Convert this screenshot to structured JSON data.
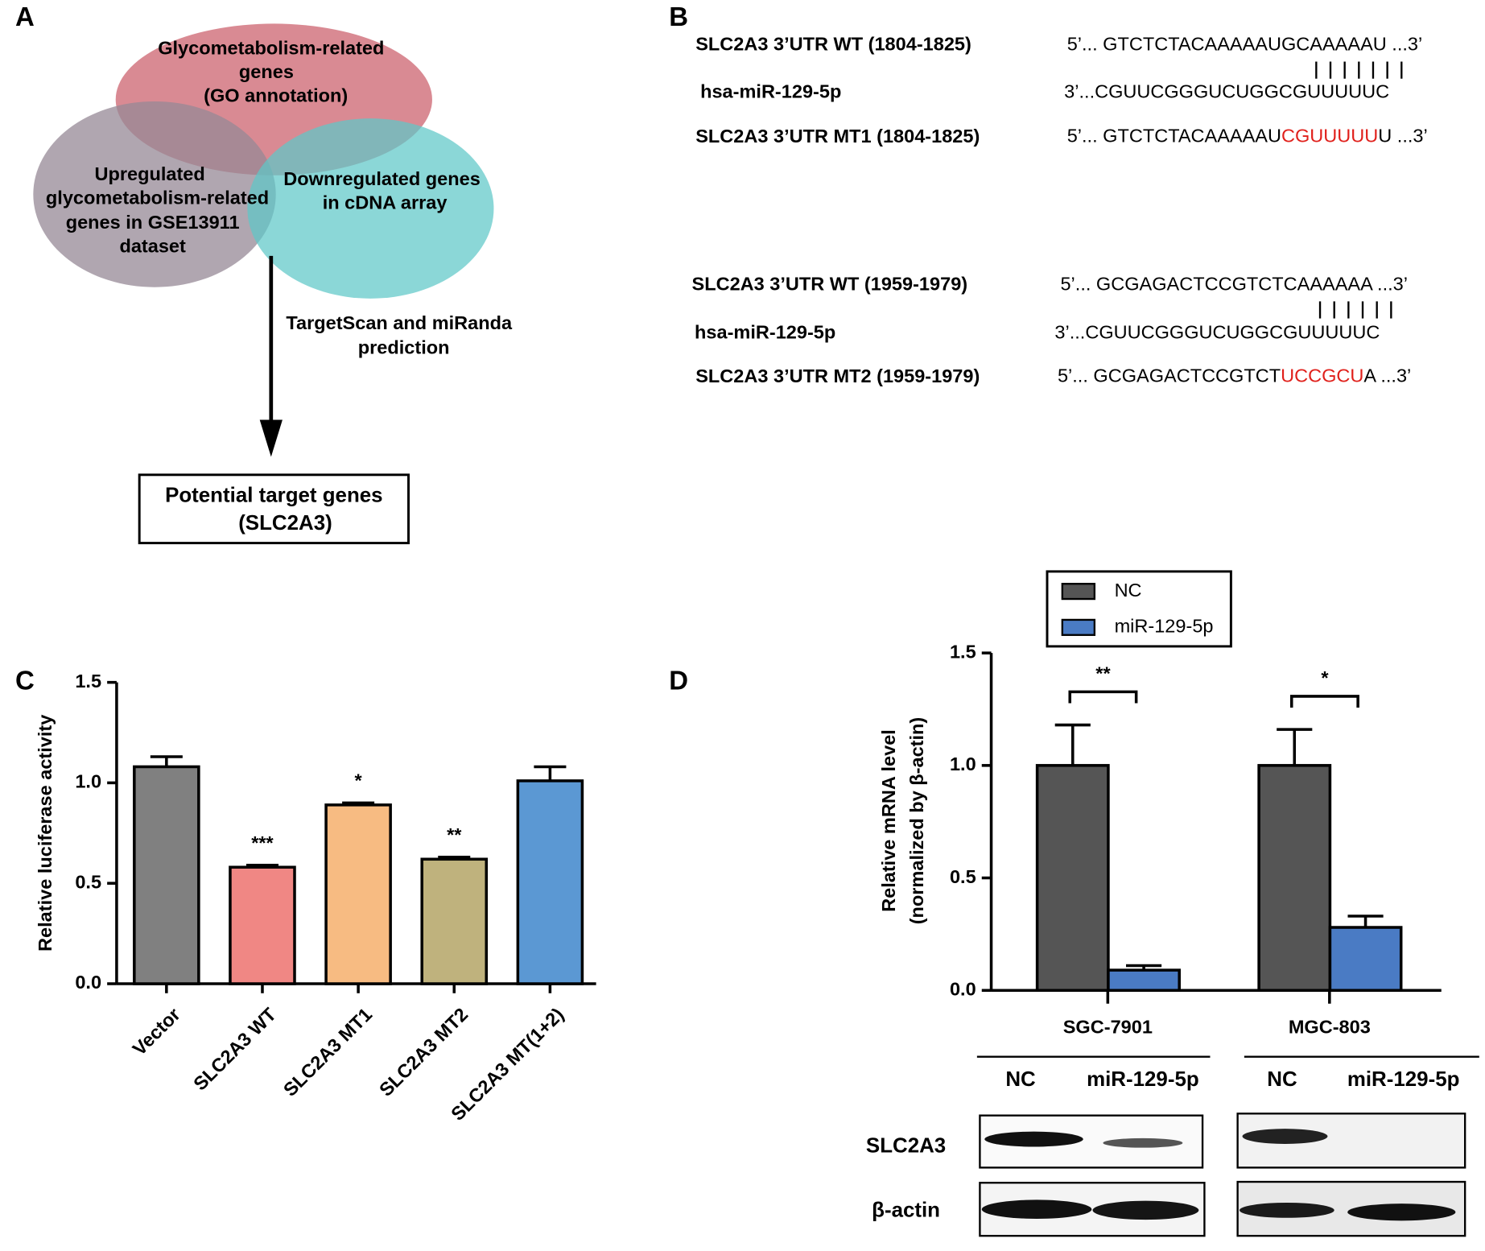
{
  "panel_labels": [
    "A",
    "B",
    "C",
    "D"
  ],
  "venn": {
    "top": [
      "Glycometabolism-related",
      "genes",
      "(GO annotation)"
    ],
    "left": [
      "Upregulated",
      "glycometabolism-related",
      "genes in GSE13911",
      "dataset"
    ],
    "right": [
      "Downregulated genes",
      "in  cDNA array"
    ],
    "arrow_label": [
      "TargetScan and miRanda",
      "prediction"
    ],
    "result": [
      "Potential target genes",
      "(SLC2A3)"
    ]
  },
  "sequences": [
    {
      "wt_label": "SLC2A3 3’UTR WT (1804-1825)",
      "wt": "5’... GTCTCTACAAAAAUGCAAAAAU ...3’",
      "mir_label": "hsa-miR-129-5p",
      "mir": "3’...CGUUCGGGUCUGGCGUUUUUC",
      "mt_label": "SLC2A3 3’UTR MT1 (1804-1825)",
      "mt": [
        "5’... GTCTCTACAAAAAU",
        "CGUUUUU",
        "U ...3’"
      ]
    },
    {
      "wt_label": "SLC2A3 3’UTR WT (1959-1979)",
      "wt": "5’... GCGAGACTCCGTCTCAAAAAA ...3’",
      "mir_label": "hsa-miR-129-5p",
      "mir": "3’...CGUUCGGGUCUGGCGUUUUUC",
      "mt_label": "SLC2A3 3’UTR MT2 (1959-1979)",
      "mt": [
        "5’... GCGAGACTCCGTCT",
        "UCCGCU",
        "A ...3’"
      ]
    }
  ],
  "chart_data": [
    {
      "type": "bar",
      "ylabel": "Relative luciferase activity",
      "categories": [
        "Vector",
        "SLC2A3 WT",
        "SLC2A3 MT1",
        "SLC2A3 MT2",
        "SLC2A3 MT(1+2)"
      ],
      "values": [
        1.08,
        0.58,
        0.89,
        0.62,
        1.01
      ],
      "errors": [
        0.05,
        0.01,
        0.01,
        0.01,
        0.07
      ],
      "colors": [
        "#808080",
        "#f08784",
        "#f7bb82",
        "#bfb27d",
        "#5b98d3"
      ],
      "significance": [
        null,
        "***",
        "*",
        "**",
        null
      ],
      "ylim": [
        0,
        1.5
      ],
      "yticks": [
        {
          "value": 0,
          "label": "0.0"
        },
        0.5,
        {
          "value": 1,
          "label": "1.0"
        },
        1.5
      ]
    },
    {
      "type": "grouped_bar",
      "ylabel": [
        "Relative  mRNA level",
        "(normalized by  β-actin)"
      ],
      "categories": [
        "SGC-7901",
        "MGC-803"
      ],
      "series": [
        {
          "name": "NC",
          "color": "#555555",
          "values": [
            1.0,
            1.0
          ],
          "errors": [
            0.18,
            0.16
          ]
        },
        {
          "name": "miR-129-5p",
          "color": "#4a7bc4",
          "values": [
            0.09,
            0.28
          ],
          "errors": [
            0.02,
            0.05
          ]
        }
      ],
      "significance": [
        "**",
        "*"
      ],
      "ylim": [
        0,
        1.5
      ],
      "yticks": [
        {
          "value": 0,
          "label": "0.0"
        },
        0.5,
        {
          "value": 1,
          "label": "1.0"
        },
        1.5
      ],
      "legend": "top"
    }
  ],
  "blot": {
    "columns": [
      "NC",
      "miR-129-5p",
      "NC",
      "miR-129-5p"
    ],
    "rows": [
      "SLC2A3",
      "β-actin"
    ]
  }
}
